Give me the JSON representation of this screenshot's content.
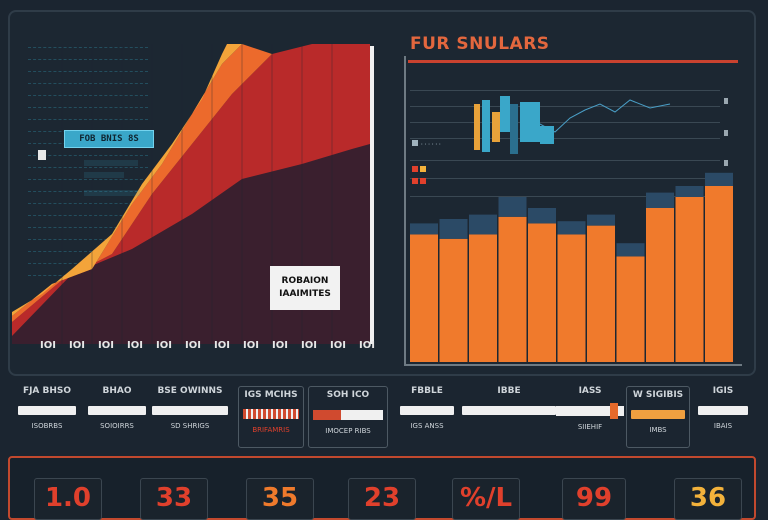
{
  "left_panel": {
    "legend_box": "FOB BNIS 8S",
    "card_line1": "ROBAION",
    "card_line2": "IAAIMITES",
    "x_ticks": [
      "IOI",
      "IOI",
      "IOI",
      "IOI",
      "IOI",
      "IOI",
      "IOI",
      "IOI",
      "IOI",
      "IOI",
      "IOI",
      "IOI"
    ],
    "series": [
      {
        "name": "",
        "color": "#f3b23b"
      },
      {
        "name": "",
        "color": "#f07a2c"
      },
      {
        "name": "",
        "color": "#d2342a"
      },
      {
        "name": "",
        "color": "#8b1e27"
      }
    ]
  },
  "right_panel": {
    "title": "FUR SNULARS",
    "bars": [
      58,
      56,
      58,
      66,
      63,
      58,
      62,
      48,
      70,
      75,
      80
    ],
    "bar_caps": [
      5,
      9,
      9,
      9,
      7,
      6,
      5,
      6,
      7,
      5,
      6
    ],
    "bar_color": "#f07a2c",
    "cap_color": "#2b4a66"
  },
  "controls": [
    {
      "top": "FJA BHSO",
      "sub": "ISOBRBS"
    },
    {
      "top": "BHAO",
      "sub": "SOIOIRRS"
    },
    {
      "top": "BSE OWINNS",
      "sub": "SD SHRIGS"
    },
    {
      "top": "IGS MCIHS",
      "sub": "BRIFAMRIS"
    },
    {
      "top": "SOH  ICO",
      "sub": "IMOCEP RIBS"
    },
    {
      "top": "FBBLE",
      "sub": "IGS ANSS"
    },
    {
      "top": "IBBE",
      "sub": ""
    },
    {
      "top": "IASS",
      "sub": "SIIEHIF"
    },
    {
      "top": "W SIGIBIS",
      "sub": "IMBS"
    },
    {
      "top": "IGIS",
      "sub": "IBAIS"
    }
  ],
  "counters": [
    {
      "value": "1.0",
      "color": "#e0402c"
    },
    {
      "value": "33",
      "color": "#e0402c"
    },
    {
      "value": "35",
      "color": "#ef7a2c"
    },
    {
      "value": "23",
      "color": "#e0402c"
    },
    {
      "value": "%/L",
      "color": "#e0402c"
    },
    {
      "value": "99",
      "color": "#e0402c"
    },
    {
      "value": "36",
      "color": "#f3b23b"
    }
  ]
}
